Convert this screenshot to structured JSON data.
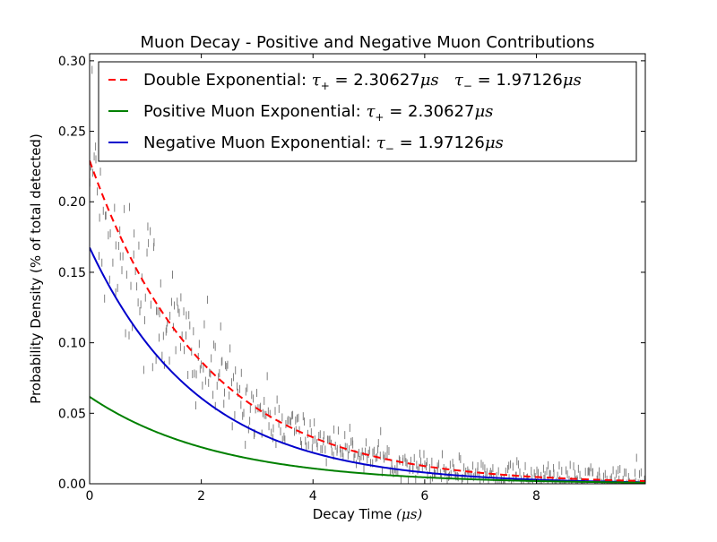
{
  "chart_data": {
    "type": "line",
    "title": "Muon Decay - Positive and Negative Muon Contributions",
    "xlabel_text": "Decay Time",
    "xlabel_unit": "μs",
    "ylabel": "Probability Density (% of total detected)",
    "xlim": [
      0,
      9.95
    ],
    "ylim": [
      0,
      0.305
    ],
    "xticks": [
      0,
      2,
      4,
      6,
      8
    ],
    "xtick_labels": [
      "0",
      "2",
      "4",
      "6",
      "8"
    ],
    "yticks": [
      0.0,
      0.05,
      0.1,
      0.15,
      0.2,
      0.25,
      0.3
    ],
    "ytick_labels": [
      "0.00",
      "0.05",
      "0.10",
      "0.15",
      "0.20",
      "0.25",
      "0.30"
    ],
    "grid": false,
    "legend_position": "top",
    "series": [
      {
        "name": "Double Exponential",
        "legend_prefix": "Double Exponential: ",
        "legend_parts": [
          {
            "sym": "τ",
            "sub": "+",
            "val": " = 2.30627",
            "unit": "μs"
          },
          {
            "sym": "τ",
            "sub": "−",
            "val": " = 1.97126",
            "unit": "μs"
          }
        ],
        "color": "#ff0000",
        "style": "dashed",
        "components": [
          {
            "amplitude": 0.0617,
            "tau": 2.30627
          },
          {
            "amplitude": 0.1675,
            "tau": 1.97126
          }
        ]
      },
      {
        "name": "Positive Muon Exponential",
        "legend_prefix": "Positive Muon Exponential: ",
        "legend_parts": [
          {
            "sym": "τ",
            "sub": "+",
            "val": " = 2.30627",
            "unit": "μs"
          }
        ],
        "color": "#008000",
        "style": "solid",
        "components": [
          {
            "amplitude": 0.0617,
            "tau": 2.30627
          }
        ]
      },
      {
        "name": "Negative Muon Exponential",
        "legend_prefix": "Negative Muon Exponential: ",
        "legend_parts": [
          {
            "sym": "τ",
            "sub": "−",
            "val": " = 1.97126",
            "unit": "μs"
          }
        ],
        "color": "#0000cc",
        "style": "solid",
        "components": [
          {
            "amplitude": 0.1675,
            "tau": 1.97126
          }
        ]
      }
    ],
    "histogram": {
      "color": "#808080",
      "bin_width": 0.02,
      "noise_relative": 0.22,
      "noise_floor": 0.005
    }
  }
}
